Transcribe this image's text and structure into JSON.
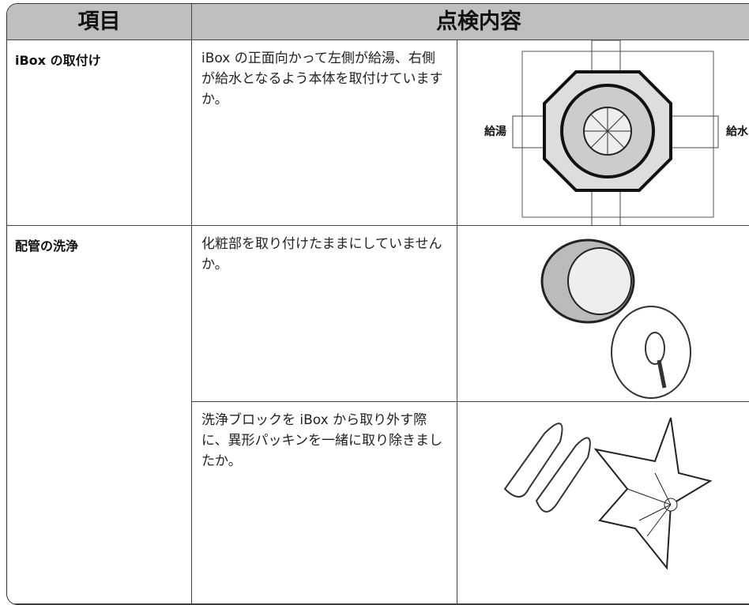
{
  "header": {
    "item": "項目",
    "content": "点検内容"
  },
  "rows": [
    {
      "item": "iBox の取付け",
      "text": "iBox の正面向かって左側が給湯、右側が給水となるよう本体を取付けていますか。",
      "labels": [
        "給湯",
        "給水"
      ]
    },
    {
      "item": "配管の洗浄",
      "text": "化粧部を取り付けたままにしていませんか。"
    },
    {
      "text": "洗浄ブロックを iBox から取り外す際に、異形パッキンを一緒に取り除きましたか。"
    }
  ]
}
